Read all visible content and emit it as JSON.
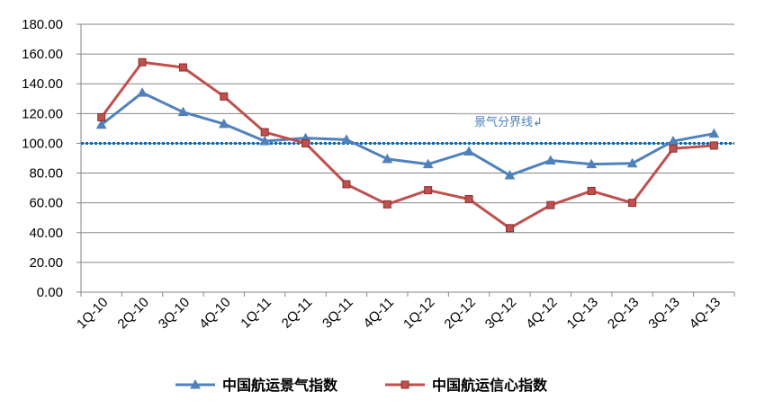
{
  "chart_data": {
    "type": "line",
    "categories": [
      "1Q-10",
      "2Q-10",
      "3Q-10",
      "4Q-10",
      "1Q-11",
      "2Q-11",
      "3Q-11",
      "4Q-11",
      "1Q-12",
      "2Q-12",
      "3Q-12",
      "4Q-12",
      "1Q-13",
      "2Q-13",
      "3Q-13",
      "4Q-13"
    ],
    "series": [
      {
        "name": "中国航运景气指数",
        "color": "#4f81bd",
        "marker": "triangle",
        "values": [
          112.5,
          134,
          121,
          113,
          101.5,
          103.5,
          102.5,
          89.5,
          86,
          94.5,
          78.5,
          88.5,
          86,
          86.5,
          101.5,
          106.5
        ]
      },
      {
        "name": "中国航运信心指数",
        "color": "#c0504d",
        "marker": "square",
        "values": [
          117.5,
          154.5,
          151,
          131.5,
          107.5,
          100,
          72.5,
          59,
          68.5,
          62.5,
          43,
          58.5,
          68,
          60,
          96.5,
          98.5
        ]
      }
    ],
    "yticks": [
      "0.00",
      "20.00",
      "40.00",
      "60.00",
      "80.00",
      "100.00",
      "120.00",
      "140.00",
      "160.00",
      "180.00"
    ],
    "ylim": [
      0,
      180
    ],
    "reference_line": {
      "value": 100,
      "label": "景气分界线↲",
      "color": "#0070c0"
    },
    "grid": true,
    "legend": "bottom"
  }
}
